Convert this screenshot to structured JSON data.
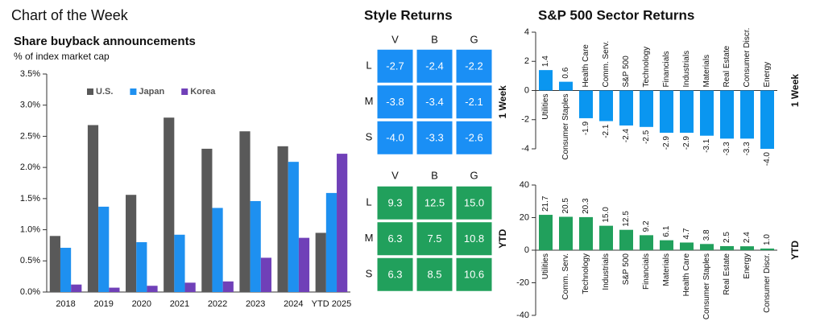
{
  "header": "Chart of the Week",
  "chart_data": [
    {
      "type": "bar",
      "title": "Share buyback announcements",
      "subtitle": "% of index market cap",
      "categories": [
        "2018",
        "2019",
        "2020",
        "2021",
        "2022",
        "2023",
        "2024",
        "YTD 2025"
      ],
      "series": [
        {
          "name": "U.S.",
          "color": "#595959",
          "values": [
            0.9,
            2.68,
            1.56,
            2.8,
            2.3,
            2.58,
            2.34,
            0.95
          ]
        },
        {
          "name": "Japan",
          "color": "#1e90f0",
          "values": [
            0.71,
            1.37,
            0.8,
            0.92,
            1.35,
            1.46,
            2.09,
            1.59
          ]
        },
        {
          "name": "Korea",
          "color": "#7040b8",
          "values": [
            0.12,
            0.07,
            0.1,
            0.15,
            0.17,
            0.55,
            0.87,
            2.22
          ]
        }
      ],
      "ylim": [
        0,
        3.5
      ],
      "yticks": [
        {
          "value": 0,
          "label": "0.0%"
        },
        {
          "value": 0.5,
          "label": "0.5%"
        },
        {
          "value": 1,
          "label": "1.0%"
        },
        {
          "value": 1.5,
          "label": "1.5%"
        },
        {
          "value": 2,
          "label": "2.0%"
        },
        {
          "value": 2.5,
          "label": "2.5%"
        },
        {
          "value": 3,
          "label": "3.0%"
        },
        {
          "value": 3.5,
          "label": "3.5%"
        }
      ],
      "legend": "upper-left"
    },
    {
      "type": "heatmap",
      "title": "Style Returns",
      "side_label": "1 Week",
      "color": "#1a8ff5",
      "columns": [
        "V",
        "B",
        "G"
      ],
      "rows": [
        "L",
        "M",
        "S"
      ],
      "values": [
        [
          -2.7,
          -2.4,
          -2.2
        ],
        [
          -3.8,
          -3.4,
          -2.1
        ],
        [
          -4.0,
          -3.3,
          -2.6
        ]
      ],
      "value_labels": [
        [
          "-2.7",
          "-2.4",
          "-2.2"
        ],
        [
          "-3.8",
          "-3.4",
          "-2.1"
        ],
        [
          "-4.0",
          "-3.3",
          "-2.6"
        ]
      ]
    },
    {
      "type": "heatmap",
      "side_label": "YTD",
      "color": "#21a05c",
      "columns": [
        "V",
        "B",
        "G"
      ],
      "rows": [
        "L",
        "M",
        "S"
      ],
      "values": [
        [
          9.3,
          12.5,
          15.0
        ],
        [
          6.3,
          7.5,
          10.8
        ],
        [
          6.3,
          8.5,
          10.6
        ]
      ],
      "value_labels": [
        [
          "9.3",
          "12.5",
          "15.0"
        ],
        [
          "6.3",
          "7.5",
          "10.8"
        ],
        [
          "6.3",
          "8.5",
          "10.6"
        ]
      ]
    },
    {
      "type": "bar",
      "title": "S&P 500 Sector Returns",
      "side_label": "1 Week",
      "color": "#0a96f0",
      "categories": [
        "Utilities",
        "Consumer Staples",
        "Health Care",
        "Comm. Serv.",
        "S&P 500",
        "Technology",
        "Financials",
        "Industrials",
        "Materials",
        "Real Estate",
        "Consumer Discr.",
        "Energy"
      ],
      "values": [
        1.4,
        0.6,
        -1.9,
        -2.1,
        -2.4,
        -2.5,
        -2.9,
        -2.9,
        -3.1,
        -3.3,
        -3.3,
        -4.0
      ],
      "value_labels": [
        "1.4",
        "0.6",
        "-1.9",
        "-2.1",
        "-2.4",
        "-2.5",
        "-2.9",
        "-2.9",
        "-3.1",
        "-3.3",
        "-3.3",
        "-4.0"
      ],
      "ylim": [
        -4,
        4
      ],
      "yticks": [
        -4,
        -2,
        0,
        2,
        4
      ]
    },
    {
      "type": "bar",
      "side_label": "YTD",
      "color": "#21a05c",
      "categories": [
        "Utilities",
        "Comm. Serv.",
        "Technology",
        "Industrials",
        "S&P 500",
        "Financials",
        "Materials",
        "Health Care",
        "Consumer Staples",
        "Real Estate",
        "Energy",
        "Consumer Discr."
      ],
      "values": [
        21.7,
        20.5,
        20.3,
        15.0,
        12.5,
        9.2,
        6.1,
        4.7,
        3.8,
        2.5,
        2.4,
        1.0
      ],
      "value_labels": [
        "21.7",
        "20.5",
        "20.3",
        "15.0",
        "12.5",
        "9.2",
        "6.1",
        "4.7",
        "3.8",
        "2.5",
        "2.4",
        "1.0"
      ],
      "ylim": [
        -40,
        40
      ],
      "yticks": [
        -40,
        -20,
        0,
        20,
        40
      ]
    }
  ]
}
